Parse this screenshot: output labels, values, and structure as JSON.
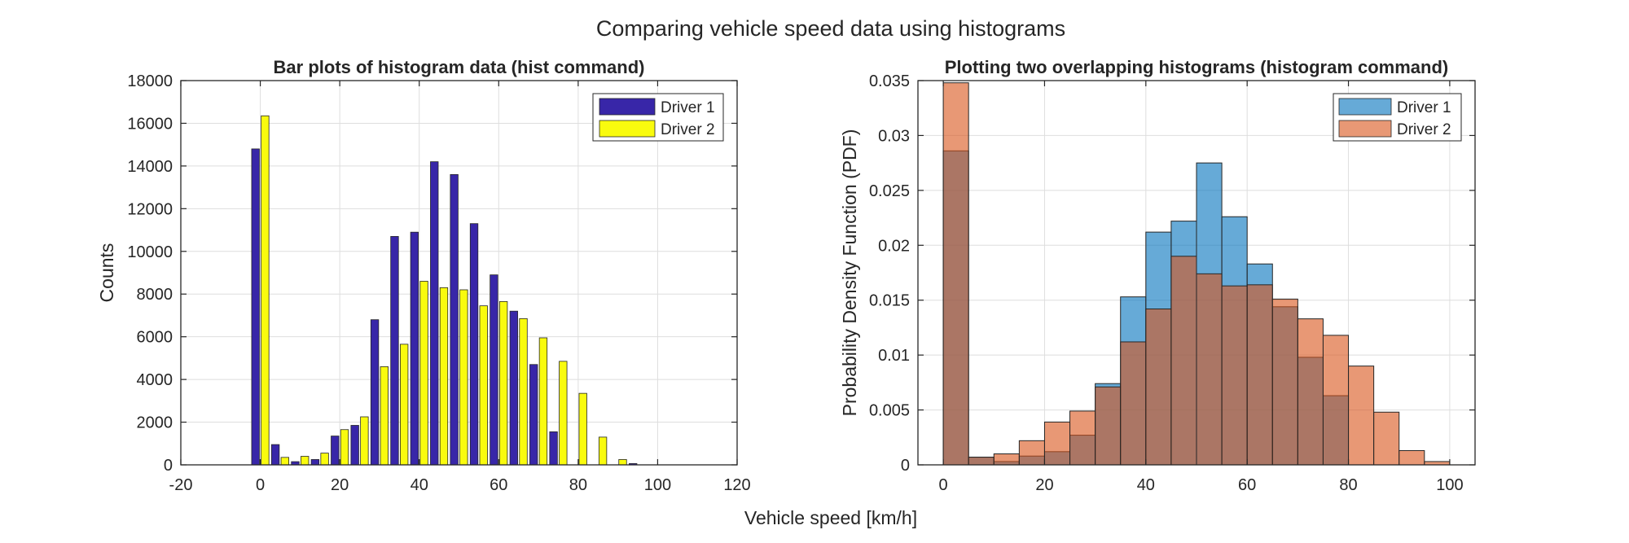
{
  "figure": {
    "suptitle": "Comparing vehicle speed data using histograms",
    "xlabel": "Vehicle speed [km/h]"
  },
  "chart_data": [
    {
      "type": "bar",
      "title": "Bar plots of histogram data (hist command)",
      "xlabel": "",
      "ylabel": "Counts",
      "xlim": [
        -20,
        120
      ],
      "ylim": [
        0,
        18000
      ],
      "xticks": [
        -20,
        0,
        20,
        40,
        60,
        80,
        100,
        120
      ],
      "yticks": [
        0,
        2000,
        4000,
        6000,
        8000,
        10000,
        12000,
        14000,
        16000,
        18000
      ],
      "grid": true,
      "legend_position": "top-right",
      "categories": [
        0,
        5,
        10,
        15,
        20,
        25,
        30,
        35,
        40,
        45,
        50,
        55,
        60,
        65,
        70,
        75,
        80,
        85,
        90,
        95
      ],
      "series": [
        {
          "name": "Driver 1",
          "color": "#3826a8",
          "values": [
            14800,
            950,
            150,
            250,
            1350,
            1850,
            6800,
            10700,
            10900,
            14200,
            13600,
            11300,
            8900,
            7200,
            4700,
            1550,
            0,
            0,
            0,
            60
          ]
        },
        {
          "name": "Driver 2",
          "color": "#f9fb0e",
          "values": [
            16350,
            350,
            400,
            550,
            1650,
            2250,
            4600,
            5650,
            8600,
            8300,
            8200,
            7450,
            7650,
            6850,
            5950,
            4850,
            3350,
            1300,
            250,
            0
          ]
        }
      ]
    },
    {
      "type": "bar",
      "title": "Plotting two overlapping histograms (histogram command)",
      "xlabel": "",
      "ylabel": "Probability Density Function (PDF)",
      "xlim": [
        -5,
        105
      ],
      "ylim": [
        0,
        0.035
      ],
      "xticks": [
        0,
        20,
        40,
        60,
        80,
        100
      ],
      "yticks": [
        0,
        0.005,
        0.01,
        0.015,
        0.02,
        0.025,
        0.03,
        0.035
      ],
      "grid": true,
      "legend_position": "top-right",
      "bin_edges": [
        0,
        5,
        10,
        15,
        20,
        25,
        30,
        35,
        40,
        45,
        50,
        55,
        60,
        65,
        70,
        75,
        80,
        85,
        90,
        95
      ],
      "series": [
        {
          "name": "Driver 1",
          "color": "#0072bd",
          "values": [
            0.0286,
            0.0007,
            0.0003,
            0.0008,
            0.0012,
            0.0027,
            0.0074,
            0.0153,
            0.0212,
            0.0222,
            0.0275,
            0.0226,
            0.0183,
            0.0144,
            0.0098,
            0.0063,
            0,
            0,
            0,
            0
          ]
        },
        {
          "name": "Driver 2",
          "color": "#d95319",
          "values": [
            0.0348,
            0.0007,
            0.001,
            0.0022,
            0.0039,
            0.0049,
            0.0071,
            0.0112,
            0.0142,
            0.019,
            0.0174,
            0.0163,
            0.0164,
            0.0151,
            0.0133,
            0.0118,
            0.009,
            0.0048,
            0.0013,
            0.0003
          ]
        }
      ]
    }
  ]
}
